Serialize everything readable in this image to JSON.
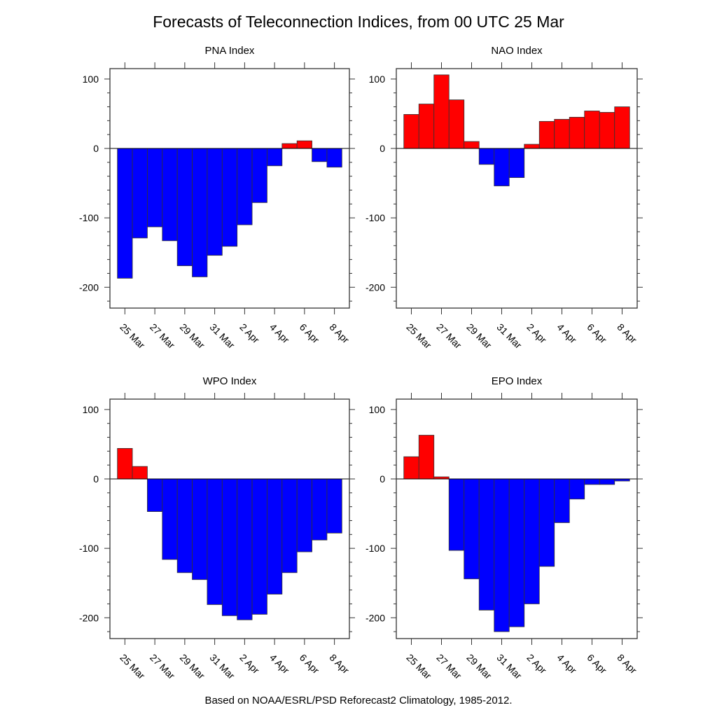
{
  "title": "Forecasts of Teleconnection Indices, from 00 UTC 25 Mar",
  "footer": "Based on NOAA/ESRL/PSD Reforecast2 Climatology, 1985-2012.",
  "colors": {
    "positive": "#ff0000",
    "negative": "#0000ff"
  },
  "chart_data": [
    {
      "type": "bar",
      "title": "PNA Index",
      "categories": [
        "25 Mar",
        "26 Mar",
        "27 Mar",
        "28 Mar",
        "29 Mar",
        "30 Mar",
        "31 Mar",
        "1 Apr",
        "2 Apr",
        "3 Apr",
        "4 Apr",
        "5 Apr",
        "6 Apr",
        "7 Apr",
        "8 Apr"
      ],
      "values": [
        -187,
        -129,
        -113,
        -133,
        -169,
        -185,
        -154,
        -141,
        -110,
        -78,
        -25,
        7,
        11,
        -19,
        -27
      ],
      "x_tick_labels": [
        "25 Mar",
        "27 Mar",
        "29 Mar",
        "31 Mar",
        "2 Apr",
        "4 Apr",
        "6 Apr",
        "8 Apr"
      ],
      "y_tick_labels": [
        "100",
        "0",
        "-100",
        "-200"
      ],
      "ylim": [
        -230,
        115
      ],
      "grid": false
    },
    {
      "type": "bar",
      "title": "NAO Index",
      "categories": [
        "25 Mar",
        "26 Mar",
        "27 Mar",
        "28 Mar",
        "29 Mar",
        "30 Mar",
        "31 Mar",
        "1 Apr",
        "2 Apr",
        "3 Apr",
        "4 Apr",
        "5 Apr",
        "6 Apr",
        "7 Apr",
        "8 Apr"
      ],
      "values": [
        49,
        64,
        106,
        70,
        10,
        -23,
        -54,
        -42,
        6,
        39,
        42,
        45,
        54,
        52,
        60
      ],
      "x_tick_labels": [
        "25 Mar",
        "27 Mar",
        "29 Mar",
        "31 Mar",
        "2 Apr",
        "4 Apr",
        "6 Apr",
        "8 Apr"
      ],
      "y_tick_labels": [
        "100",
        "0",
        "-100",
        "-200"
      ],
      "ylim": [
        -230,
        115
      ],
      "grid": false
    },
    {
      "type": "bar",
      "title": "WPO Index",
      "categories": [
        "25 Mar",
        "26 Mar",
        "27 Mar",
        "28 Mar",
        "29 Mar",
        "30 Mar",
        "31 Mar",
        "1 Apr",
        "2 Apr",
        "3 Apr",
        "4 Apr",
        "5 Apr",
        "6 Apr",
        "7 Apr",
        "8 Apr"
      ],
      "values": [
        44,
        18,
        -47,
        -116,
        -135,
        -145,
        -181,
        -197,
        -203,
        -195,
        -166,
        -135,
        -105,
        -88,
        -78
      ],
      "x_tick_labels": [
        "25 Mar",
        "27 Mar",
        "29 Mar",
        "31 Mar",
        "2 Apr",
        "4 Apr",
        "6 Apr",
        "8 Apr"
      ],
      "y_tick_labels": [
        "100",
        "0",
        "-100",
        "-200"
      ],
      "ylim": [
        -230,
        115
      ],
      "grid": false
    },
    {
      "type": "bar",
      "title": "EPO Index",
      "categories": [
        "25 Mar",
        "26 Mar",
        "27 Mar",
        "28 Mar",
        "29 Mar",
        "30 Mar",
        "31 Mar",
        "1 Apr",
        "2 Apr",
        "3 Apr",
        "4 Apr",
        "5 Apr",
        "6 Apr",
        "7 Apr",
        "8 Apr"
      ],
      "values": [
        32,
        63,
        3,
        -103,
        -144,
        -189,
        -220,
        -213,
        -180,
        -126,
        -63,
        -29,
        -8,
        -8,
        -3
      ],
      "x_tick_labels": [
        "25 Mar",
        "27 Mar",
        "29 Mar",
        "31 Mar",
        "2 Apr",
        "4 Apr",
        "6 Apr",
        "8 Apr"
      ],
      "y_tick_labels": [
        "100",
        "0",
        "-100",
        "-200"
      ],
      "ylim": [
        -230,
        115
      ],
      "grid": false
    }
  ]
}
